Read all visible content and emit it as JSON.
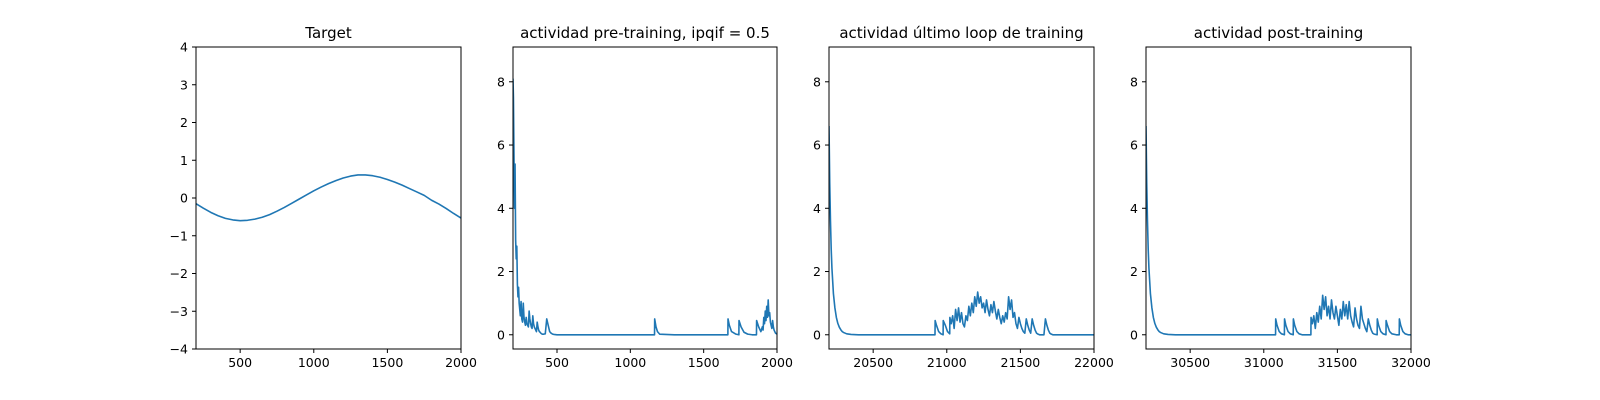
{
  "chart_data": [
    {
      "type": "line",
      "title": "Target",
      "xlabel": "",
      "ylabel": "",
      "xlim": [
        200,
        2000
      ],
      "ylim": [
        -4,
        4
      ],
      "xticks": [
        500,
        1000,
        1500,
        2000
      ],
      "yticks": [
        -4,
        -3,
        -2,
        -1,
        0,
        1,
        2,
        3,
        4
      ],
      "grid": false,
      "color": "#1f77b4",
      "series": [
        {
          "x": [
            200,
            250,
            300,
            350,
            400,
            450,
            500,
            550,
            600,
            650,
            700,
            750,
            800,
            850,
            900,
            950,
            1000,
            1050,
            1100,
            1150,
            1200,
            1250,
            1300,
            1350,
            1400,
            1450,
            1500,
            1550,
            1600,
            1650,
            1700,
            1750,
            1800,
            1850,
            1900,
            1950,
            2000
          ],
          "y": [
            -0.15,
            -0.27,
            -0.38,
            -0.47,
            -0.54,
            -0.58,
            -0.6,
            -0.59,
            -0.56,
            -0.51,
            -0.44,
            -0.35,
            -0.25,
            -0.14,
            -0.03,
            0.08,
            0.19,
            0.29,
            0.38,
            0.46,
            0.53,
            0.58,
            0.61,
            0.61,
            0.59,
            0.55,
            0.49,
            0.42,
            0.34,
            0.25,
            0.16,
            0.07,
            -0.06,
            -0.16,
            -0.28,
            -0.41,
            -0.53
          ]
        }
      ]
    },
    {
      "type": "line",
      "title": "actividad pre-training, ipqif = 0.5",
      "xlabel": "",
      "ylabel": "",
      "xlim": [
        200,
        2000
      ],
      "ylim": [
        -0.45,
        9.1
      ],
      "xticks": [
        500,
        1000,
        1500,
        2000
      ],
      "yticks": [
        0,
        2,
        4,
        6,
        8
      ],
      "grid": false,
      "color": "#1f77b4",
      "series": [
        {
          "x": [
            200,
            203,
            206,
            210,
            214,
            218,
            222,
            226,
            230,
            234,
            238,
            242,
            246,
            250,
            255,
            260,
            265,
            270,
            275,
            280,
            285,
            290,
            295,
            300,
            305,
            310,
            315,
            320,
            325,
            330,
            335,
            340,
            345,
            350,
            355,
            360,
            365,
            370,
            375,
            380,
            385,
            390,
            395,
            400,
            410,
            420,
            430,
            440,
            445,
            450,
            460,
            470,
            480,
            500,
            600,
            800,
            1000,
            1165,
            1166,
            1175,
            1185,
            1200,
            1300,
            1500,
            1665,
            1666,
            1675,
            1690,
            1720,
            1740,
            1741,
            1755,
            1775,
            1800,
            1830,
            1860,
            1861,
            1875,
            1890,
            1900,
            1905,
            1910,
            1915,
            1920,
            1925,
            1930,
            1935,
            1940,
            1945,
            1950,
            1955,
            1960,
            1965,
            1970,
            1975,
            1980,
            1990,
            2000
          ],
          "y": [
            8.1,
            7.5,
            6.0,
            4.0,
            5.4,
            3.0,
            2.4,
            2.8,
            1.6,
            1.2,
            1.5,
            1.0,
            0.8,
            0.6,
            1.05,
            0.5,
            0.4,
            1.0,
            0.55,
            0.4,
            0.3,
            0.55,
            0.35,
            0.3,
            0.25,
            0.75,
            0.5,
            0.35,
            0.25,
            0.2,
            0.6,
            0.35,
            0.25,
            0.2,
            0.15,
            0.1,
            0.4,
            0.25,
            0.15,
            0.1,
            0.08,
            0.05,
            0.03,
            0.02,
            0.02,
            0.03,
            0.5,
            0.3,
            0.2,
            0.1,
            0.05,
            0.02,
            0.01,
            0.0,
            0.0,
            0.0,
            0.0,
            0.0,
            0.5,
            0.25,
            0.1,
            0.02,
            0.0,
            0.0,
            0.0,
            0.5,
            0.3,
            0.1,
            0.02,
            0.0,
            0.45,
            0.25,
            0.08,
            0.02,
            0.0,
            0.0,
            0.45,
            0.25,
            0.1,
            0.25,
            0.15,
            0.55,
            0.35,
            0.75,
            0.45,
            0.9,
            0.55,
            1.1,
            0.6,
            0.7,
            0.4,
            0.3,
            0.2,
            0.45,
            0.25,
            0.15,
            0.05,
            0.02
          ]
        }
      ]
    },
    {
      "type": "line",
      "title": "actividad último loop de training",
      "xlabel": "",
      "ylabel": "",
      "xlim": [
        20200,
        22000
      ],
      "ylim": [
        -0.45,
        9.1
      ],
      "xticks": [
        20500,
        21000,
        21500,
        22000
      ],
      "yticks": [
        0,
        2,
        4,
        6,
        8
      ],
      "grid": false,
      "color": "#1f77b4",
      "series": [
        {
          "x": [
            20200,
            20205,
            20210,
            20215,
            20220,
            20230,
            20240,
            20250,
            20260,
            20270,
            20280,
            20290,
            20300,
            20320,
            20350,
            20400,
            20500,
            20600,
            20700,
            20800,
            20900,
            20920,
            20921,
            20930,
            20945,
            20960,
            20975,
            20976,
            20990,
            21005,
            21020,
            21021,
            21030,
            21040,
            21050,
            21060,
            21070,
            21080,
            21090,
            21100,
            21110,
            21120,
            21130,
            21140,
            21150,
            21160,
            21170,
            21180,
            21190,
            21200,
            21210,
            21220,
            21230,
            21240,
            21250,
            21260,
            21270,
            21280,
            21290,
            21300,
            21310,
            21320,
            21330,
            21340,
            21350,
            21360,
            21370,
            21380,
            21390,
            21400,
            21410,
            21420,
            21430,
            21440,
            21450,
            21460,
            21470,
            21480,
            21490,
            21500,
            21510,
            21520,
            21530,
            21540,
            21550,
            21560,
            21570,
            21580,
            21590,
            21600,
            21610,
            21620,
            21630,
            21640,
            21650,
            21660,
            21670,
            21680,
            21690,
            21700,
            21710,
            21720,
            21730,
            21740,
            21750,
            21800,
            21900,
            22000
          ],
          "y": [
            6.6,
            4.8,
            3.6,
            2.7,
            2.1,
            1.3,
            0.85,
            0.55,
            0.36,
            0.24,
            0.16,
            0.1,
            0.07,
            0.03,
            0.01,
            0.0,
            0.0,
            0.0,
            0.0,
            0.0,
            0.0,
            0.0,
            0.45,
            0.3,
            0.1,
            0.03,
            0.0,
            0.45,
            0.3,
            0.1,
            0.03,
            0.55,
            0.35,
            0.6,
            0.2,
            0.8,
            0.45,
            0.85,
            0.4,
            0.7,
            0.35,
            0.25,
            0.6,
            0.45,
            0.9,
            0.6,
            1.0,
            0.7,
            1.2,
            0.9,
            1.35,
            1.0,
            1.2,
            0.85,
            1.0,
            0.7,
            1.1,
            0.8,
            0.6,
            0.95,
            0.7,
            1.05,
            0.75,
            0.5,
            0.8,
            0.55,
            0.35,
            0.6,
            0.4,
            0.7,
            0.5,
            1.2,
            0.8,
            1.1,
            0.55,
            0.7,
            0.35,
            0.2,
            0.55,
            0.35,
            0.2,
            0.1,
            0.05,
            0.5,
            0.3,
            0.15,
            0.05,
            0.5,
            0.3,
            0.15,
            0.05,
            0.02,
            0.0,
            0.0,
            0.0,
            0.0,
            0.5,
            0.3,
            0.15,
            0.05,
            0.02,
            0.0,
            0.0,
            0.0,
            0.0,
            0.0,
            0.0,
            0.0
          ]
        }
      ]
    },
    {
      "type": "line",
      "title": "actividad post-training",
      "xlabel": "",
      "ylabel": "",
      "xlim": [
        30200,
        32000
      ],
      "ylim": [
        -0.45,
        9.1
      ],
      "xticks": [
        30500,
        31000,
        31500,
        32000
      ],
      "yticks": [
        0,
        2,
        4,
        6,
        8
      ],
      "grid": false,
      "color": "#1f77b4",
      "series": [
        {
          "x": [
            30200,
            30205,
            30210,
            30215,
            30220,
            30230,
            30240,
            30250,
            30260,
            30270,
            30280,
            30290,
            30300,
            30320,
            30350,
            30400,
            30500,
            30600,
            30700,
            30800,
            30900,
            31000,
            31080,
            31081,
            31090,
            31105,
            31120,
            31140,
            31141,
            31150,
            31165,
            31180,
            31200,
            31201,
            31210,
            31225,
            31240,
            31260,
            31280,
            31300,
            31320,
            31321,
            31330,
            31340,
            31350,
            31360,
            31370,
            31380,
            31390,
            31400,
            31410,
            31420,
            31430,
            31440,
            31450,
            31460,
            31470,
            31480,
            31490,
            31500,
            31510,
            31520,
            31530,
            31540,
            31550,
            31560,
            31570,
            31580,
            31590,
            31600,
            31610,
            31620,
            31630,
            31640,
            31650,
            31660,
            31670,
            31680,
            31690,
            31700,
            31710,
            31720,
            31730,
            31740,
            31750,
            31770,
            31771,
            31780,
            31795,
            31810,
            31830,
            31831,
            31840,
            31855,
            31870,
            31900,
            31920,
            31921,
            31930,
            31945,
            31960,
            31980,
            32000
          ],
          "y": [
            6.6,
            4.8,
            3.6,
            2.7,
            2.1,
            1.3,
            0.85,
            0.55,
            0.36,
            0.24,
            0.16,
            0.1,
            0.07,
            0.03,
            0.01,
            0.0,
            0.0,
            0.0,
            0.0,
            0.0,
            0.0,
            0.0,
            0.0,
            0.5,
            0.3,
            0.1,
            0.03,
            0.0,
            0.5,
            0.3,
            0.1,
            0.03,
            0.0,
            0.5,
            0.3,
            0.1,
            0.03,
            0.0,
            0.0,
            0.0,
            0.0,
            0.55,
            0.35,
            0.6,
            0.2,
            0.7,
            0.4,
            0.9,
            0.5,
            1.25,
            0.8,
            1.2,
            0.6,
            0.9,
            0.5,
            1.1,
            0.7,
            0.5,
            0.9,
            0.6,
            0.3,
            0.8,
            0.5,
            1.05,
            0.6,
            0.95,
            0.5,
            1.05,
            0.6,
            0.4,
            0.25,
            0.85,
            0.5,
            0.3,
            0.2,
            0.9,
            0.5,
            0.35,
            0.2,
            0.1,
            0.5,
            0.3,
            0.15,
            0.05,
            0.02,
            0.0,
            0.5,
            0.3,
            0.1,
            0.03,
            0.0,
            0.45,
            0.3,
            0.1,
            0.03,
            0.0,
            0.0,
            0.5,
            0.3,
            0.1,
            0.03,
            0.0,
            0.0
          ]
        }
      ]
    }
  ]
}
